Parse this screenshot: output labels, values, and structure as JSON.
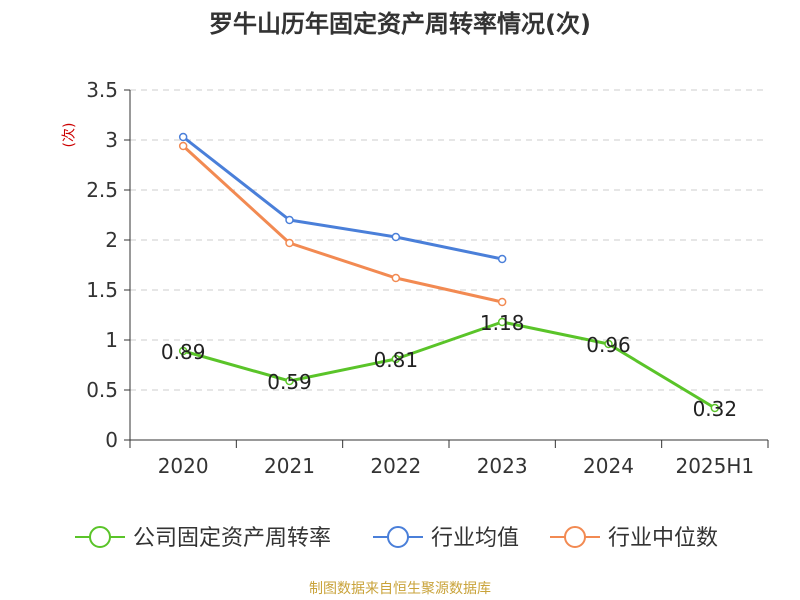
{
  "colors": {
    "company": "#5ac429",
    "industry_avg": "#4a7fd9",
    "industry_median": "#f28a52",
    "grid": "#cccccc",
    "axis": "#333333",
    "unit": "#cc0000",
    "footer": "#c9a33a"
  },
  "chart_data": {
    "type": "line",
    "title": "罗牛山历年固定资产周转率情况(次)",
    "ylabel": "(次)",
    "xlabel": "",
    "categories": [
      "2020",
      "2021",
      "2022",
      "2023",
      "2024",
      "2025H1"
    ],
    "ylim": [
      0,
      3.5
    ],
    "yticks": [
      "0",
      "0.5",
      "1",
      "1.5",
      "2",
      "2.5",
      "3",
      "3.5"
    ],
    "grid": true,
    "legend_position": "bottom",
    "series": [
      {
        "name": "公司固定资产周转率",
        "values": [
          0.89,
          0.59,
          0.81,
          1.18,
          0.96,
          0.32
        ],
        "labels": [
          "0.89",
          "0.59",
          "0.81",
          "1.18",
          "0.96",
          "0.32"
        ]
      },
      {
        "name": "行业均值",
        "values": [
          3.03,
          2.2,
          2.03,
          1.81,
          null,
          null
        ]
      },
      {
        "name": "行业中位数",
        "values": [
          2.94,
          1.97,
          1.62,
          1.38,
          null,
          null
        ]
      }
    ]
  },
  "footer": "制图数据来自恒生聚源数据库"
}
